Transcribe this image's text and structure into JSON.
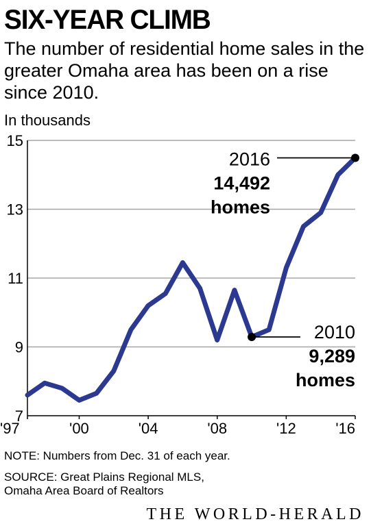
{
  "header": {
    "title": "SIX-YEAR CLIMB",
    "subtitle": "The number of residential home sales in the greater Omaha area has been on a rise since 2010.",
    "units": "In thousands"
  },
  "footer": {
    "note": "NOTE: Numbers from Dec. 31 of each year.",
    "source_line1": "SOURCE: Great Plains Regional MLS,",
    "source_line2": "Omaha Area Board of Realtors",
    "brand": "THE WORLD-HERALD"
  },
  "chart_data": {
    "type": "line",
    "title": "SIX-YEAR CLIMB",
    "ylabel": "In thousands",
    "ylim": [
      7,
      15
    ],
    "yticks": [
      7,
      9,
      11,
      13,
      15
    ],
    "xlim": [
      1997,
      2016
    ],
    "xticks": [
      {
        "value": 1997,
        "label": "'97"
      },
      {
        "value": 2000,
        "label": "'00"
      },
      {
        "value": 2004,
        "label": "'04"
      },
      {
        "value": 2008,
        "label": "'08"
      },
      {
        "value": 2012,
        "label": "'12"
      },
      {
        "value": 2016,
        "label": "'16"
      }
    ],
    "grid": true,
    "line_color": "#2b3990",
    "series": [
      {
        "x": [
          1997,
          1998,
          1999,
          2000,
          2001,
          2002,
          2003,
          2004,
          2005,
          2006,
          2007,
          2008,
          2009,
          2010,
          2011,
          2012,
          2013,
          2014,
          2015,
          2016
        ],
        "values": [
          7.6,
          7.95,
          7.8,
          7.45,
          7.65,
          8.3,
          9.5,
          10.2,
          10.55,
          11.45,
          10.7,
          9.2,
          10.65,
          9.289,
          9.5,
          11.3,
          12.5,
          12.9,
          14.0,
          14.492
        ]
      }
    ],
    "annotations": [
      {
        "x": 2016,
        "y": 14.492,
        "year": "2016",
        "value": "14,492",
        "unit": "homes"
      },
      {
        "x": 2010,
        "y": 9.289,
        "year": "2010",
        "value": "9,289",
        "unit": "homes"
      }
    ]
  }
}
